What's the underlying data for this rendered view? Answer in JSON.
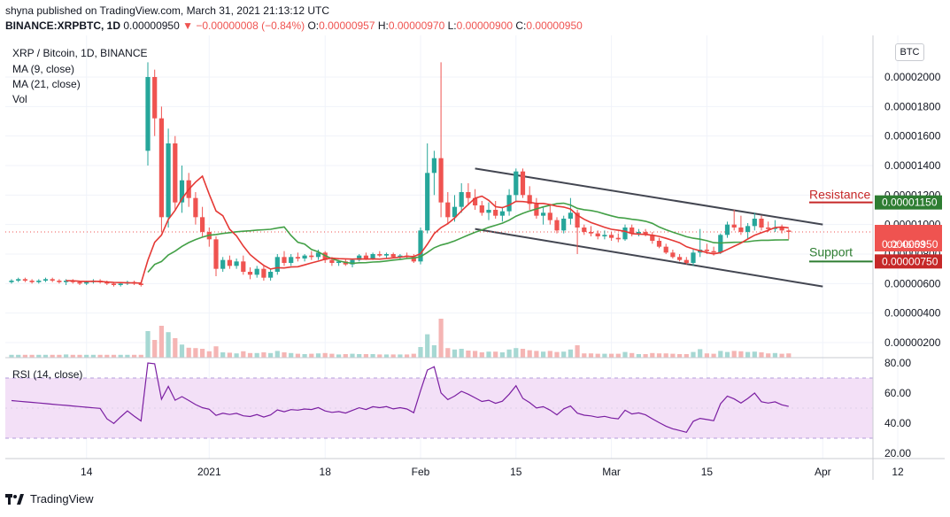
{
  "header": {
    "published": "shyna published on TradingView.com, March 31, 2021 21:13:12 UTC",
    "symbol": "BINANCE:XRPBTC, 1D",
    "last": "0.00000950",
    "change": "−0.00000008 (−0.84%)",
    "o_label": "O:",
    "o": "0.00000957",
    "h_label": "H:",
    "h": "0.00000970",
    "l_label": "L:",
    "l": "0.00000900",
    "c_label": "C:",
    "c": "0.00000950"
  },
  "indicators": {
    "pair": "XRP / Bitcoin, 1D, BINANCE",
    "ma9": "MA (9, close)",
    "ma21": "MA (21, close)",
    "vol": "Vol",
    "rsi": "RSI (14, close)"
  },
  "currency_button": "BTC",
  "annotations": {
    "resistance": "Resistance",
    "support": "Support"
  },
  "price_tags": {
    "resistance": "0.00001150",
    "last": "0.00000950",
    "countdown": "02:46:53",
    "support": "0.00000750"
  },
  "footer": {
    "brand": "TradingView"
  },
  "colors": {
    "up": "#26a69a",
    "down": "#ef5350",
    "up_vol": "#a6d8d3",
    "down_vol": "#f5b5b4",
    "ma9": "#e53935",
    "ma21": "#43a047",
    "rsi_line": "#7b1fa2",
    "rsi_band": "#f3e0f7",
    "resistance": "#c62828",
    "support": "#2e7d32",
    "channel": "#434651"
  },
  "chart_data": [
    {
      "type": "candlestick",
      "title": "XRP / Bitcoin, 1D, BINANCE",
      "yaxis": {
        "ticks": [
          "0.00002000",
          "0.00001800",
          "0.00001600",
          "0.00001400",
          "0.00001200",
          "0.00001000",
          "0.00000800",
          "0.00000600",
          "0.00000400",
          "0.00000200"
        ],
        "tick_values": [
          2e-05,
          1.8e-05,
          1.6e-05,
          1.4e-05,
          1.2e-05,
          1e-05,
          8e-06,
          6e-06,
          4e-06,
          2e-06
        ]
      },
      "xaxis": {
        "ticks": [
          "14",
          "2021",
          "18",
          "Feb",
          "15",
          "Mar",
          "15",
          "Apr",
          "12"
        ],
        "tick_dates": [
          "2020-12-14",
          "2021-01-01",
          "2021-01-18",
          "2021-02-01",
          "2021-02-15",
          "2021-03-01",
          "2021-03-15",
          "2021-04-01",
          "2021-04-12"
        ]
      },
      "start_date": "2020-12-03",
      "candles": [
        [
          6.1e-06,
          6.3e-06,
          6e-06,
          6.2e-06
        ],
        [
          6.2e-06,
          6.4e-06,
          6.1e-06,
          6.3e-06
        ],
        [
          6.3e-06,
          6.4e-06,
          6.1e-06,
          6.2e-06
        ],
        [
          6.2e-06,
          6.3e-06,
          6e-06,
          6.1e-06
        ],
        [
          6.1e-06,
          6.3e-06,
          6e-06,
          6.2e-06
        ],
        [
          6.2e-06,
          6.4e-06,
          6.1e-06,
          6.3e-06
        ],
        [
          6.3e-06,
          6.4e-06,
          6.1e-06,
          6.2e-06
        ],
        [
          6.2e-06,
          6.3e-06,
          6e-06,
          6.1e-06
        ],
        [
          6.1e-06,
          6.3e-06,
          5.9e-06,
          6.2e-06
        ],
        [
          6.2e-06,
          6.3e-06,
          6e-06,
          6.1e-06
        ],
        [
          6.1e-06,
          6.2e-06,
          5.9e-06,
          6e-06
        ],
        [
          6e-06,
          6.2e-06,
          5.9e-06,
          6.1e-06
        ],
        [
          6.1e-06,
          6.3e-06,
          6e-06,
          6.2e-06
        ],
        [
          6.2e-06,
          6.3e-06,
          6e-06,
          6.1e-06
        ],
        [
          6.1e-06,
          6.2e-06,
          5.9e-06,
          6e-06
        ],
        [
          6e-06,
          6.1e-06,
          5.8e-06,
          5.9e-06
        ],
        [
          5.9e-06,
          6.1e-06,
          5.8e-06,
          6e-06
        ],
        [
          6e-06,
          6.2e-06,
          5.9e-06,
          6.1e-06
        ],
        [
          6.1e-06,
          6.2e-06,
          5.9e-06,
          6e-06
        ],
        [
          6e-06,
          6.1e-06,
          5.8e-06,
          5.9e-06
        ],
        [
          1.5e-05,
          2.1e-05,
          1.4e-05,
          2e-05
        ],
        [
          2e-05,
          2.05e-05,
          1.6e-05,
          1.72e-05
        ],
        [
          1.72e-05,
          1.8e-05,
          9.5e-06,
          1.05e-05
        ],
        [
          1.05e-05,
          1.65e-05,
          9.8e-06,
          1.55e-05
        ],
        [
          1.55e-05,
          1.6e-05,
          1.1e-05,
          1.15e-05
        ],
        [
          1.15e-05,
          1.4e-05,
          1.08e-05,
          1.3e-05
        ],
        [
          1.3e-05,
          1.35e-05,
          1.12e-05,
          1.18e-05
        ],
        [
          1.18e-05,
          1.22e-05,
          1e-05,
          1.05e-05
        ],
        [
          1.05e-05,
          1.12e-05,
          9.2e-06,
          9.5e-06
        ],
        [
          9.5e-06,
          9.8e-06,
          8.5e-06,
          9e-06
        ],
        [
          9e-06,
          9.2e-06,
          6.5e-06,
          7e-06
        ],
        [
          7e-06,
          7.8e-06,
          6.8e-06,
          7.6e-06
        ],
        [
          7.6e-06,
          7.9e-06,
          7e-06,
          7.2e-06
        ],
        [
          7.2e-06,
          7.7e-06,
          7e-06,
          7.5e-06
        ],
        [
          7.5e-06,
          7.9e-06,
          6.6e-06,
          6.8e-06
        ],
        [
          6.8e-06,
          7.1e-06,
          6.3e-06,
          6.6e-06
        ],
        [
          6.6e-06,
          7.2e-06,
          6.4e-06,
          7e-06
        ],
        [
          7e-06,
          7.2e-06,
          6.2e-06,
          6.4e-06
        ],
        [
          6.4e-06,
          7e-06,
          6.2e-06,
          6.8e-06
        ],
        [
          6.8e-06,
          8e-06,
          6.6e-06,
          7.8e-06
        ],
        [
          7.8e-06,
          8.2e-06,
          7.2e-06,
          7.4e-06
        ],
        [
          7.4e-06,
          8e-06,
          7.2e-06,
          7.8e-06
        ],
        [
          7.8e-06,
          8.1e-06,
          7.5e-06,
          7.7e-06
        ],
        [
          7.7e-06,
          8e-06,
          7.5e-06,
          7.9e-06
        ],
        [
          7.9e-06,
          8.2e-06,
          7.6e-06,
          7.8e-06
        ],
        [
          7.8e-06,
          8.3e-06,
          7.6e-06,
          8.1e-06
        ],
        [
          8.1e-06,
          8.2e-06,
          7.4e-06,
          7.6e-06
        ],
        [
          7.6e-06,
          7.8e-06,
          7.2e-06,
          7.4e-06
        ],
        [
          7.4e-06,
          7.6e-06,
          7.2e-06,
          7.5e-06
        ],
        [
          7.5e-06,
          7.7e-06,
          7.2e-06,
          7.3e-06
        ],
        [
          7.3e-06,
          7.7e-06,
          7.1e-06,
          7.6e-06
        ],
        [
          7.6e-06,
          8e-06,
          7.5e-06,
          7.9e-06
        ],
        [
          7.9e-06,
          8.1e-06,
          7.6e-06,
          7.7e-06
        ],
        [
          7.7e-06,
          8.1e-06,
          7.6e-06,
          8e-06
        ],
        [
          8e-06,
          8.2e-06,
          7.8e-06,
          7.9e-06
        ],
        [
          7.9e-06,
          8.1e-06,
          7.7e-06,
          8e-06
        ],
        [
          8e-06,
          8.1e-06,
          7.7e-06,
          7.8e-06
        ],
        [
          7.8e-06,
          8e-06,
          7.6e-06,
          7.9e-06
        ],
        [
          7.9e-06,
          8.1e-06,
          7.7e-06,
          7.8e-06
        ],
        [
          7.8e-06,
          8e-06,
          7.4e-06,
          7.5e-06
        ],
        [
          7.5e-06,
          9.8e-06,
          7.3e-06,
          9.6e-06
        ],
        [
          9.6e-06,
          1.55e-05,
          9.4e-06,
          1.35e-05
        ],
        [
          1.35e-05,
          1.5e-05,
          1.2e-05,
          1.45e-05
        ],
        [
          1.45e-05,
          2.1e-05,
          1.05e-05,
          1.15e-05
        ],
        [
          1.15e-05,
          1.22e-05,
          1e-05,
          1.05e-05
        ],
        [
          1.05e-05,
          1.2e-05,
          1.02e-05,
          1.12e-05
        ],
        [
          1.12e-05,
          1.28e-05,
          1.08e-05,
          1.22e-05
        ],
        [
          1.22e-05,
          1.28e-05,
          1.13e-05,
          1.18e-05
        ],
        [
          1.18e-05,
          1.24e-05,
          1.1e-05,
          1.13e-05
        ],
        [
          1.13e-05,
          1.16e-05,
          1.06e-05,
          1.08e-05
        ],
        [
          1.08e-05,
          1.15e-05,
          1.03e-05,
          1.1e-05
        ],
        [
          1.1e-05,
          1.16e-05,
          1.04e-05,
          1.06e-05
        ],
        [
          1.06e-05,
          1.12e-05,
          1.02e-05,
          1.09e-05
        ],
        [
          1.09e-05,
          1.24e-05,
          1.06e-05,
          1.2e-05
        ],
        [
          1.2e-05,
          1.38e-05,
          1.16e-05,
          1.36e-05
        ],
        [
          1.36e-05,
          1.38e-05,
          1.18e-05,
          1.2e-05
        ],
        [
          1.2e-05,
          1.26e-05,
          1.1e-05,
          1.14e-05
        ],
        [
          1.14e-05,
          1.18e-05,
          1.04e-05,
          1.06e-05
        ],
        [
          1.06e-05,
          1.12e-05,
          1e-05,
          1.08e-05
        ],
        [
          1.08e-05,
          1.14e-05,
          1e-05,
          1.03e-05
        ],
        [
          1.03e-05,
          1.05e-05,
          9.4e-06,
          9.6e-06
        ],
        [
          9.6e-06,
          1.06e-05,
          9.4e-06,
          1.04e-05
        ],
        [
          1.04e-05,
          1.18e-05,
          1e-05,
          1.08e-05
        ],
        [
          1.08e-05,
          1.1e-05,
          8e-06,
          9.8e-06
        ],
        [
          9.8e-06,
          1e-05,
          9.3e-06,
          9.5e-06
        ],
        [
          9.5e-06,
          9.9e-06,
          9.2e-06,
          9.4e-06
        ],
        [
          9.4e-06,
          9.6e-06,
          9e-06,
          9.2e-06
        ],
        [
          9.2e-06,
          9.6e-06,
          9e-06,
          9.3e-06
        ],
        [
          9.3e-06,
          9.5e-06,
          8.9e-06,
          9.1e-06
        ],
        [
          9.1e-06,
          9.4e-06,
          8.8e-06,
          9e-06
        ],
        [
          9e-06,
          1e-05,
          8.9e-06,
          9.8e-06
        ],
        [
          9.8e-06,
          1e-05,
          9.2e-06,
          9.4e-06
        ],
        [
          9.4e-06,
          9.7e-06,
          9.2e-06,
          9.5e-06
        ],
        [
          9.5e-06,
          9.7e-06,
          9.2e-06,
          9.3e-06
        ],
        [
          9.3e-06,
          9.5e-06,
          8.7e-06,
          8.9e-06
        ],
        [
          8.9e-06,
          9.1e-06,
          8.4e-06,
          8.5e-06
        ],
        [
          8.5e-06,
          8.7e-06,
          8e-06,
          8.1e-06
        ],
        [
          8.1e-06,
          8.3e-06,
          7.7e-06,
          7.8e-06
        ],
        [
          7.8e-06,
          8e-06,
          7.5e-06,
          7.6e-06
        ],
        [
          7.6e-06,
          7.8e-06,
          7.3e-06,
          7.4e-06
        ],
        [
          7.4e-06,
          8.3e-06,
          7.2e-06,
          8.1e-06
        ],
        [
          8.1e-06,
          9.7e-06,
          7.8e-06,
          8.3e-06
        ],
        [
          8.3e-06,
          8.7e-06,
          8e-06,
          8.2e-06
        ],
        [
          8.2e-06,
          8.5e-06,
          7.9e-06,
          8.1e-06
        ],
        [
          8.1e-06,
          9.4e-06,
          8e-06,
          9.3e-06
        ],
        [
          9.3e-06,
          1.02e-05,
          9.1e-06,
          1e-05
        ],
        [
          1e-05,
          1.1e-05,
          9.6e-06,
          9.8e-06
        ],
        [
          9.8e-06,
          1.06e-05,
          9.3e-06,
          9.5e-06
        ],
        [
          9.5e-06,
          1.01e-05,
          9e-06,
          9.9e-06
        ],
        [
          9.9e-06,
          1.08e-05,
          9.6e-06,
          1.04e-05
        ],
        [
          1.04e-05,
          1.06e-05,
          9.6e-06,
          9.8e-06
        ],
        [
          9.8e-06,
          1.02e-05,
          9.5e-06,
          9.7e-06
        ],
        [
          9.7e-06,
          1.03e-05,
          9.5e-06,
          9.8e-06
        ],
        [
          9.8e-06,
          1e-05,
          9.4e-06,
          9.6e-06
        ],
        [
          9.6e-06,
          9.7e-06,
          9e-06,
          9.5e-06
        ]
      ],
      "overlays": [
        "MA (9, close)",
        "MA (21, close)"
      ],
      "trendlines": [
        {
          "from": [
            "2021-02-09",
            1.38e-05
          ],
          "to": [
            "2021-04-01",
            1e-05
          ]
        },
        {
          "from": [
            "2021-02-09",
            9.7e-06
          ],
          "to": [
            "2021-04-01",
            5.8e-06
          ]
        }
      ],
      "levels": [
        {
          "label": "Resistance",
          "value": 1.15e-05
        },
        {
          "label": "Support",
          "value": 7.5e-06
        }
      ]
    },
    {
      "type": "line",
      "title": "RSI (14, close)",
      "ylim": [
        20,
        80
      ],
      "yticks": [
        "80.00",
        "60.00",
        "40.00",
        "20.00"
      ],
      "band": [
        30,
        70
      ]
    }
  ]
}
